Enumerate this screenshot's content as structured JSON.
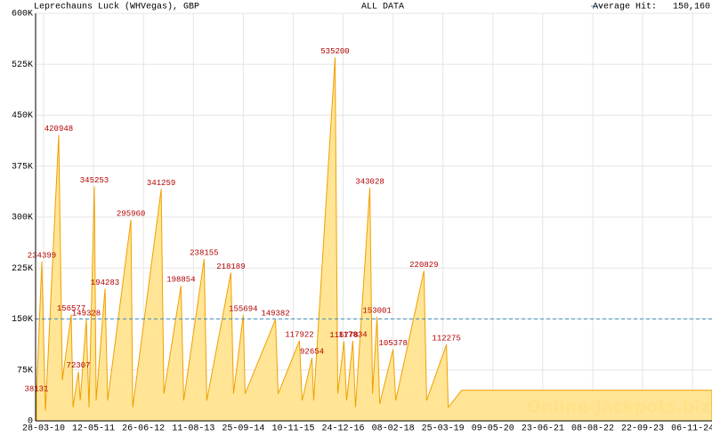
{
  "chart_data": {
    "type": "area",
    "title": "Leprechauns Luck (WHVegas), GBP",
    "subtitle": "ALL DATA",
    "watermark": "Online-Jackpots.biz",
    "x": [
      "28-01-10",
      "13-03-10",
      "12-04-10",
      "30-07-10",
      "29-08-10",
      "10-11-10",
      "25-11-10",
      "08-01-11",
      "23-01-11",
      "14-03-11",
      "05-04-11",
      "19-05-11",
      "03-06-11",
      "15-08-11",
      "06-09-11",
      "15-03-12",
      "30-03-12",
      "19-11-12",
      "11-12-12",
      "01-05-13",
      "23-05-13",
      "07-11-13",
      "29-11-13",
      "15-06-14",
      "07-07-14",
      "25-09-14",
      "10-10-14",
      "17-06-15",
      "09-07-15",
      "31-12-15",
      "22-01-16",
      "12-04-16",
      "26-04-16",
      "19-10-16",
      "10-11-16",
      "31-12-16",
      "22-01-17",
      "14-03-17",
      "05-04-17",
      "01-08-17",
      "23-08-17",
      "29-09-17",
      "21-10-17",
      "08-02-18",
      "02-03-18",
      "20-10-18",
      "11-11-18",
      "23-04-19",
      "08-05-19",
      "26-08-19",
      "15-04-25"
    ],
    "series": [
      {
        "color": "#f0a000",
        "fill": "#ffe28a",
        "values": [
          38131,
          234399,
          15000,
          420948,
          60000,
          156577,
          20000,
          72307,
          30000,
          149328,
          20000,
          345253,
          30000,
          194283,
          30000,
          295960,
          20000,
          341259,
          40000,
          198854,
          30000,
          238155,
          30000,
          218189,
          40000,
          155694,
          40000,
          149382,
          40000,
          117922,
          30000,
          92654,
          30000,
          535200,
          40000,
          116778,
          30000,
          117834,
          20000,
          343028,
          40000,
          153001,
          25000,
          105378,
          30000,
          220829,
          30000,
          112275,
          20000,
          45000,
          45000
        ],
        "value_labels": [
          "38131",
          "234399",
          null,
          "420948",
          null,
          "156577",
          null,
          "72307",
          null,
          "149328",
          null,
          "345253",
          null,
          "194283",
          null,
          "295960",
          null,
          "341259",
          null,
          "198854",
          null,
          "238155",
          null,
          "218189",
          null,
          "155694",
          null,
          "149382",
          null,
          "117922",
          null,
          "92654",
          null,
          "535200",
          null,
          "116778",
          null,
          "117834",
          null,
          "343028",
          null,
          "153001",
          null,
          "105378",
          null,
          "220829",
          null,
          "112275",
          null,
          null,
          null
        ]
      }
    ],
    "average_line": {
      "name": "Average Hit:",
      "value": 150160,
      "value_label": "150,160",
      "color": "#3a8fc0"
    },
    "xlim": [
      "21-01-10",
      "15-04-25"
    ],
    "xticks": [
      "28-03-10",
      "12-05-11",
      "26-06-12",
      "11-08-13",
      "25-09-14",
      "10-11-15",
      "24-12-16",
      "08-02-18",
      "25-03-19",
      "09-05-20",
      "23-06-21",
      "08-08-22",
      "22-09-23",
      "06-11-24"
    ],
    "ylim": [
      0,
      600000
    ],
    "yticks": [
      0,
      {
        "value": 75000,
        "label": "75K"
      },
      {
        "value": 150000,
        "label": "150K"
      },
      {
        "value": 225000,
        "label": "225K"
      },
      {
        "value": 300000,
        "label": "300K"
      },
      {
        "value": 375000,
        "label": "375K"
      },
      {
        "value": 450000,
        "label": "450K"
      },
      {
        "value": 525000,
        "label": "525K"
      },
      {
        "value": 600000,
        "label": "600K"
      }
    ],
    "grid": true
  }
}
